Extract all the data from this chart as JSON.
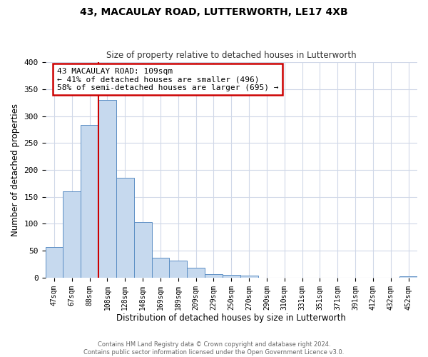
{
  "title": "43, MACAULAY ROAD, LUTTERWORTH, LE17 4XB",
  "subtitle": "Size of property relative to detached houses in Lutterworth",
  "xlabel": "Distribution of detached houses by size in Lutterworth",
  "ylabel": "Number of detached properties",
  "bar_labels": [
    "47sqm",
    "67sqm",
    "88sqm",
    "108sqm",
    "128sqm",
    "148sqm",
    "169sqm",
    "189sqm",
    "209sqm",
    "229sqm",
    "250sqm",
    "270sqm",
    "290sqm",
    "310sqm",
    "331sqm",
    "351sqm",
    "371sqm",
    "391sqm",
    "412sqm",
    "432sqm",
    "452sqm"
  ],
  "bar_values": [
    57,
    160,
    284,
    330,
    185,
    103,
    37,
    32,
    18,
    7,
    5,
    4,
    0,
    0,
    0,
    0,
    0,
    0,
    0,
    0,
    3
  ],
  "bar_color": "#c6d9ee",
  "bar_edge_color": "#5b8ec4",
  "vline_index": 3,
  "vline_color": "#cc0000",
  "ylim": [
    0,
    400
  ],
  "yticks": [
    0,
    50,
    100,
    150,
    200,
    250,
    300,
    350,
    400
  ],
  "annotation_title": "43 MACAULAY ROAD: 109sqm",
  "annotation_line1": "← 41% of detached houses are smaller (496)",
  "annotation_line2": "58% of semi-detached houses are larger (695) →",
  "annotation_box_color": "#ffffff",
  "annotation_box_edge": "#cc0000",
  "footer_line1": "Contains HM Land Registry data © Crown copyright and database right 2024.",
  "footer_line2": "Contains public sector information licensed under the Open Government Licence v3.0.",
  "bg_color": "#ffffff",
  "grid_color": "#d0d8e8"
}
